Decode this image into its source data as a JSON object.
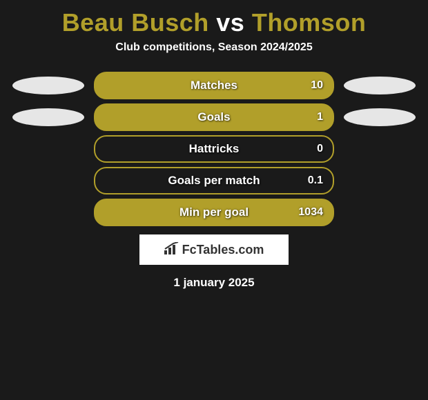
{
  "title": {
    "player1": "Beau Busch",
    "vs": "vs",
    "player2": "Thomson",
    "player1_color": "#b19f2a",
    "vs_color": "#ffffff",
    "player2_color": "#b19f2a"
  },
  "subtitle": "Club competitions, Season 2024/2025",
  "ellipse_colors": {
    "left": "#e6e6e6",
    "right": "#e6e6e6"
  },
  "bars": [
    {
      "label": "Matches",
      "value": "10",
      "fill": "solid",
      "show_ellipses": true,
      "color": "#b19f2a",
      "border": "#b19f2a"
    },
    {
      "label": "Goals",
      "value": "1",
      "fill": "solid",
      "show_ellipses": true,
      "color": "#b19f2a",
      "border": "#b19f2a"
    },
    {
      "label": "Hattricks",
      "value": "0",
      "fill": "outline",
      "show_ellipses": false,
      "color": "#b19f2a",
      "border": "#b19f2a"
    },
    {
      "label": "Goals per match",
      "value": "0.1",
      "fill": "outline",
      "show_ellipses": false,
      "color": "#b19f2a",
      "border": "#b19f2a"
    },
    {
      "label": "Min per goal",
      "value": "1034",
      "fill": "solid",
      "show_ellipses": false,
      "color": "#b19f2a",
      "border": "#b19f2a"
    }
  ],
  "logo": "FcTables.com",
  "date": "1 january 2025",
  "background_color": "#1a1a1a"
}
